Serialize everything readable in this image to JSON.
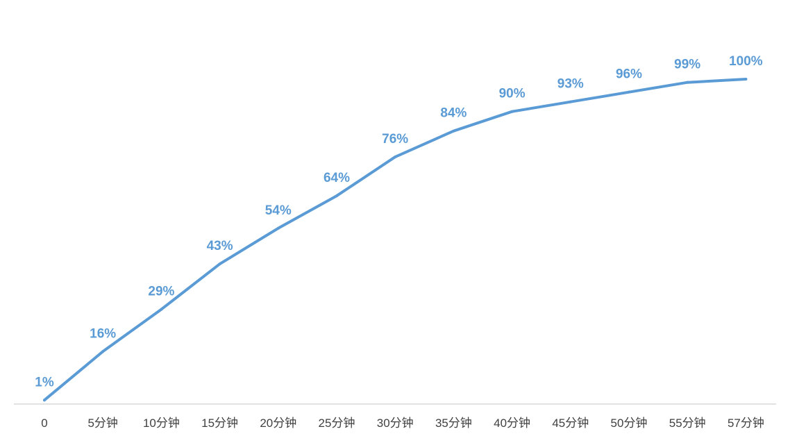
{
  "chart_data": {
    "type": "line",
    "categories": [
      "0",
      "5分钟",
      "10分钟",
      "15分钟",
      "20分钟",
      "25分钟",
      "30分钟",
      "35分钟",
      "40分钟",
      "45分钟",
      "50分钟",
      "55分钟",
      "57分钟"
    ],
    "values": [
      1,
      16,
      29,
      43,
      54,
      64,
      76,
      84,
      90,
      93,
      96,
      99,
      100
    ],
    "data_labels": [
      "1%",
      "16%",
      "29%",
      "43%",
      "54%",
      "64%",
      "76%",
      "84%",
      "90%",
      "93%",
      "96%",
      "99%",
      "100%"
    ],
    "unit": "%",
    "ylim": [
      0,
      100
    ],
    "grid": false,
    "drop_lines": true,
    "legend": "none",
    "title": "",
    "xlabel": "",
    "ylabel": ""
  },
  "colors": {
    "line": "#5b9bd5",
    "label": "#5b9bd5",
    "axis": "#d9d9d9",
    "tick_text": "#404040"
  }
}
